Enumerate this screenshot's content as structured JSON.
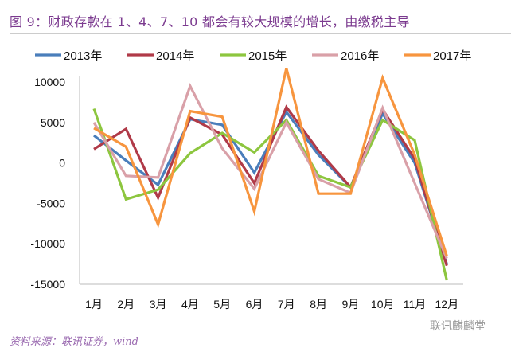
{
  "title": "图 9：财政存款在 1、4、7、10 都会有较大规模的增长，由缴税主导",
  "source": "资料来源：联讯证券，wind",
  "watermark": "联讯麒麟堂",
  "chart_data": {
    "type": "line",
    "title": "图 9：财政存款在 1、4、7、10 都会有较大规模的增长，由缴税主导",
    "xlabel": "",
    "ylabel": "",
    "categories": [
      "1月",
      "2月",
      "3月",
      "4月",
      "5月",
      "6月",
      "7月",
      "8月",
      "9月",
      "10月",
      "11月",
      "12月"
    ],
    "ylim": [
      -15000,
      10000
    ],
    "yticks": [
      10000,
      5000,
      0,
      -5000,
      -10000,
      -15000
    ],
    "legend_position": "top",
    "grid": false,
    "series": [
      {
        "name": "2013年",
        "color": "#4a7ebb",
        "values": [
          3400,
          300,
          -2700,
          5400,
          4700,
          -1200,
          6300,
          1000,
          -3000,
          6100,
          0,
          -12500
        ]
      },
      {
        "name": "2014年",
        "color": "#b03a48",
        "values": [
          1700,
          4200,
          -4300,
          5600,
          3500,
          -2500,
          6900,
          1500,
          -3000,
          6600,
          500,
          -12700
        ]
      },
      {
        "name": "2015年",
        "color": "#8dc63f",
        "values": [
          6700,
          -4500,
          -3300,
          1200,
          3700,
          1300,
          5300,
          -1600,
          -3000,
          5300,
          2800,
          -14500
        ]
      },
      {
        "name": "2016年",
        "color": "#d9a0a8",
        "values": [
          5000,
          -1600,
          -1800,
          9500,
          1800,
          -3200,
          5000,
          -2000,
          -3700,
          6800,
          -2500,
          -11800
        ]
      },
      {
        "name": "2017年",
        "color": "#f7953e",
        "values": [
          4300,
          2000,
          -7600,
          6400,
          5700,
          -6000,
          11700,
          -3800,
          -3800,
          10500,
          1000,
          -11500
        ]
      }
    ]
  }
}
